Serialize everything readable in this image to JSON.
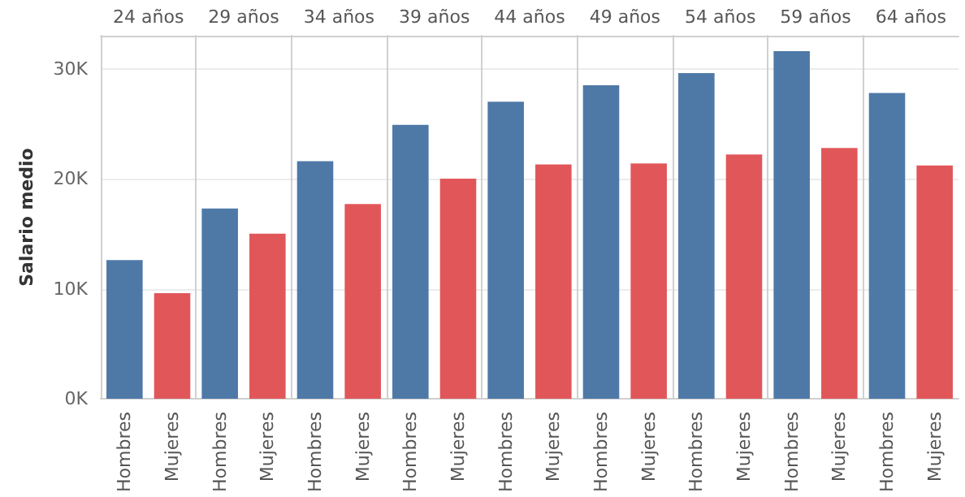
{
  "chart_data": {
    "type": "bar",
    "ylabel": "Salario medio",
    "categories": [
      "24 años",
      "29 años",
      "34 años",
      "39 años",
      "44 años",
      "49 años",
      "54 años",
      "59 años",
      "64 años"
    ],
    "series": [
      {
        "name": "Hombres",
        "color": "#4e79a7",
        "values": [
          12600,
          17300,
          21600,
          24900,
          27000,
          28500,
          29600,
          31600,
          27800
        ]
      },
      {
        "name": "Mujeres",
        "color": "#e15759",
        "values": [
          9600,
          15000,
          17700,
          20000,
          21300,
          21400,
          22200,
          22800,
          21200
        ]
      }
    ],
    "ylim": [
      0,
      33000
    ],
    "yticks": [
      {
        "value": 0,
        "label": "0K"
      },
      {
        "value": 10000,
        "label": "10K"
      },
      {
        "value": 20000,
        "label": "20K"
      },
      {
        "value": 30000,
        "label": "30K"
      }
    ],
    "grid": "y",
    "legend": false
  }
}
